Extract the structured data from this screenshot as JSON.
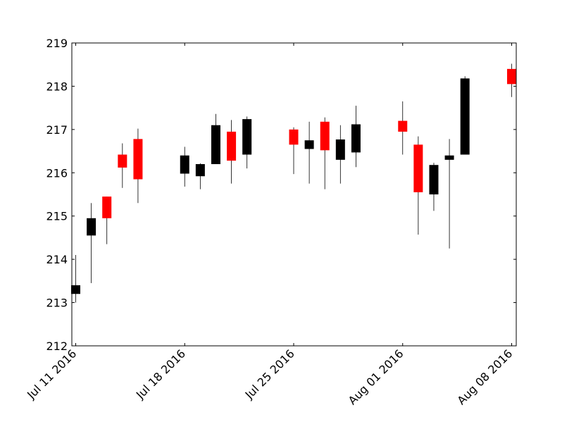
{
  "chart_data": {
    "type": "candlestick",
    "title": "",
    "xlabel": "",
    "ylabel": "",
    "ylim": [
      212,
      219
    ],
    "xlim": [
      "2016-07-11",
      "2016-08-08"
    ],
    "yticks": [
      212,
      213,
      214,
      215,
      216,
      217,
      218,
      219
    ],
    "xticks": [
      "Jul 11 2016",
      "Jul 18 2016",
      "Jul 25 2016",
      "Aug 01 2016",
      "Aug 08 2016"
    ],
    "grid": false,
    "colors": {
      "up": "#000000",
      "down": "#ff0000",
      "frame": "#000000"
    },
    "candles": [
      {
        "date": "2016-07-11",
        "open": 213.2,
        "close": 213.4,
        "high": 214.1,
        "low": 213.0
      },
      {
        "date": "2016-07-12",
        "open": 214.55,
        "close": 214.95,
        "high": 215.3,
        "low": 213.45
      },
      {
        "date": "2016-07-13",
        "open": 215.45,
        "close": 214.95,
        "high": 215.45,
        "low": 214.35
      },
      {
        "date": "2016-07-14",
        "open": 216.42,
        "close": 216.12,
        "high": 216.68,
        "low": 215.65
      },
      {
        "date": "2016-07-15",
        "open": 216.78,
        "close": 215.85,
        "high": 217.02,
        "low": 215.3
      },
      {
        "date": "2016-07-18",
        "open": 215.98,
        "close": 216.4,
        "high": 216.6,
        "low": 215.68
      },
      {
        "date": "2016-07-19",
        "open": 215.92,
        "close": 216.2,
        "high": 216.22,
        "low": 215.62
      },
      {
        "date": "2016-07-20",
        "open": 216.2,
        "close": 217.1,
        "high": 217.36,
        "low": 216.2
      },
      {
        "date": "2016-07-21",
        "open": 216.95,
        "close": 216.28,
        "high": 217.22,
        "low": 215.75
      },
      {
        "date": "2016-07-22",
        "open": 216.42,
        "close": 217.24,
        "high": 217.3,
        "low": 216.1
      },
      {
        "date": "2016-07-25",
        "open": 217.0,
        "close": 216.65,
        "high": 217.05,
        "low": 215.97
      },
      {
        "date": "2016-07-26",
        "open": 216.55,
        "close": 216.75,
        "high": 217.18,
        "low": 215.75
      },
      {
        "date": "2016-07-27",
        "open": 217.18,
        "close": 216.52,
        "high": 217.28,
        "low": 215.62
      },
      {
        "date": "2016-07-28",
        "open": 216.3,
        "close": 216.77,
        "high": 217.1,
        "low": 215.75
      },
      {
        "date": "2016-07-29",
        "open": 216.47,
        "close": 217.12,
        "high": 217.55,
        "low": 216.13
      },
      {
        "date": "2016-08-01",
        "open": 217.2,
        "close": 216.95,
        "high": 217.65,
        "low": 216.42
      },
      {
        "date": "2016-08-02",
        "open": 216.65,
        "close": 215.55,
        "high": 216.84,
        "low": 214.57
      },
      {
        "date": "2016-08-03",
        "open": 215.5,
        "close": 216.18,
        "high": 216.23,
        "low": 215.12
      },
      {
        "date": "2016-08-04",
        "open": 216.3,
        "close": 216.4,
        "high": 216.78,
        "low": 214.25
      },
      {
        "date": "2016-08-05",
        "open": 216.42,
        "close": 218.18,
        "high": 218.23,
        "low": 216.42
      },
      {
        "date": "2016-08-08",
        "open": 218.4,
        "close": 218.05,
        "high": 218.52,
        "low": 217.75
      }
    ]
  }
}
